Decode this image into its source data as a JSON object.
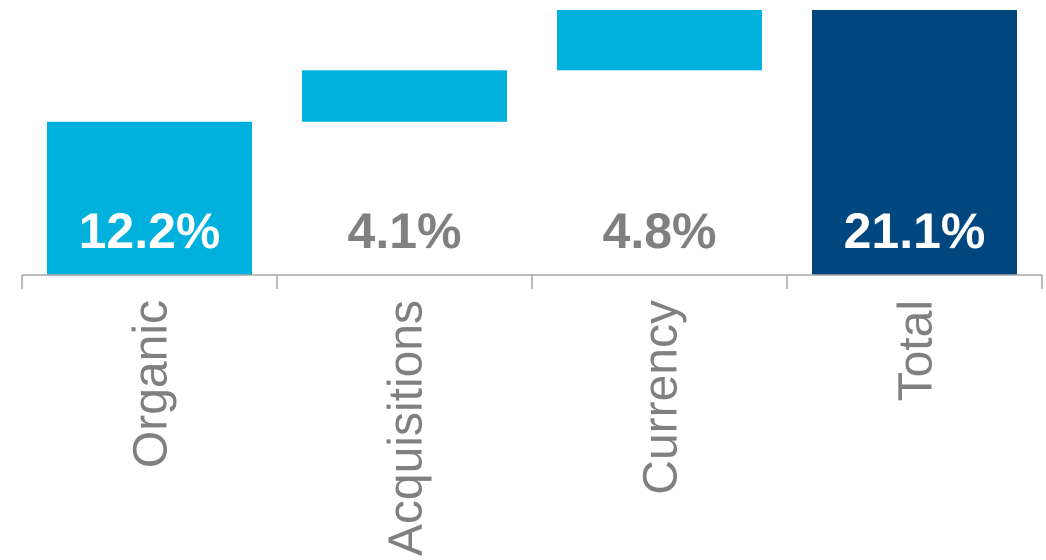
{
  "chart_data": {
    "type": "waterfall",
    "categories": [
      "Organic",
      "Acquisitions",
      "Currency",
      "Total"
    ],
    "values": [
      12.2,
      4.1,
      4.8,
      21.1
    ],
    "value_labels": [
      "12.2%",
      "4.1%",
      "4.8%",
      "21.1%"
    ],
    "kinds": [
      "increase",
      "increase",
      "increase",
      "total"
    ],
    "unit": "%",
    "ylim": [
      0,
      21.1
    ],
    "grid": false,
    "legend": "none",
    "colors": {
      "increase": "#00B0DD",
      "total": "#00467F",
      "label_on_bar": "#FFFFFF",
      "label_off_bar": "#808080",
      "axis": "#A6A6A6"
    }
  }
}
